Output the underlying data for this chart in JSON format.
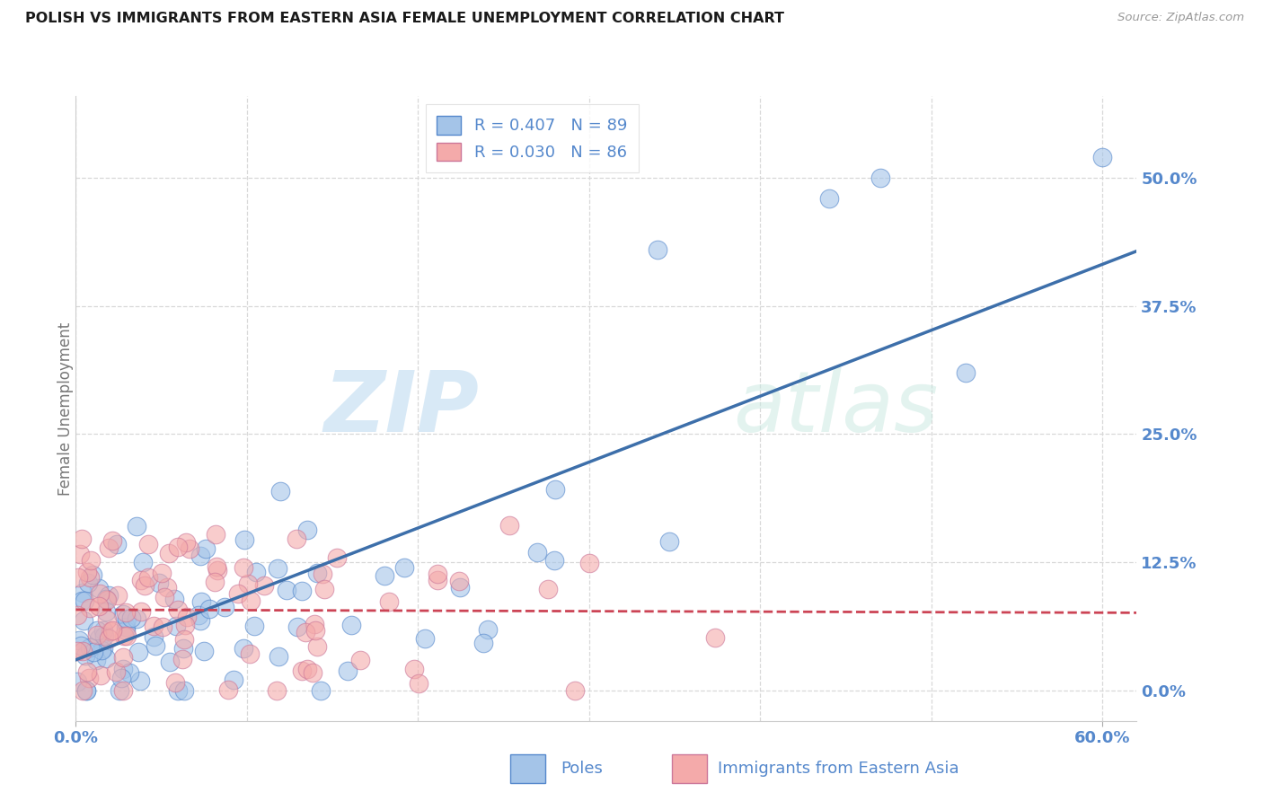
{
  "title": "POLISH VS IMMIGRANTS FROM EASTERN ASIA FEMALE UNEMPLOYMENT CORRELATION CHART",
  "source": "Source: ZipAtlas.com",
  "ylabel": "Female Unemployment",
  "ytick_values": [
    0.0,
    0.125,
    0.25,
    0.375,
    0.5
  ],
  "xlim": [
    0.0,
    0.62
  ],
  "ylim": [
    -0.03,
    0.58
  ],
  "legend1_label": "Poles",
  "legend2_label": "Immigrants from Eastern Asia",
  "R1": 0.407,
  "N1": 89,
  "R2": 0.03,
  "N2": 86,
  "color_poles_fill": "#a4c4e8",
  "color_poles_edge": "#5588cc",
  "color_immigrants_fill": "#f4aaaa",
  "color_immigrants_edge": "#cc7799",
  "color_poles_line": "#3d6faa",
  "color_immigrants_line": "#cc4455",
  "color_ticks": "#5588cc",
  "watermark_zip": "ZIP",
  "watermark_atlas": "atlas"
}
